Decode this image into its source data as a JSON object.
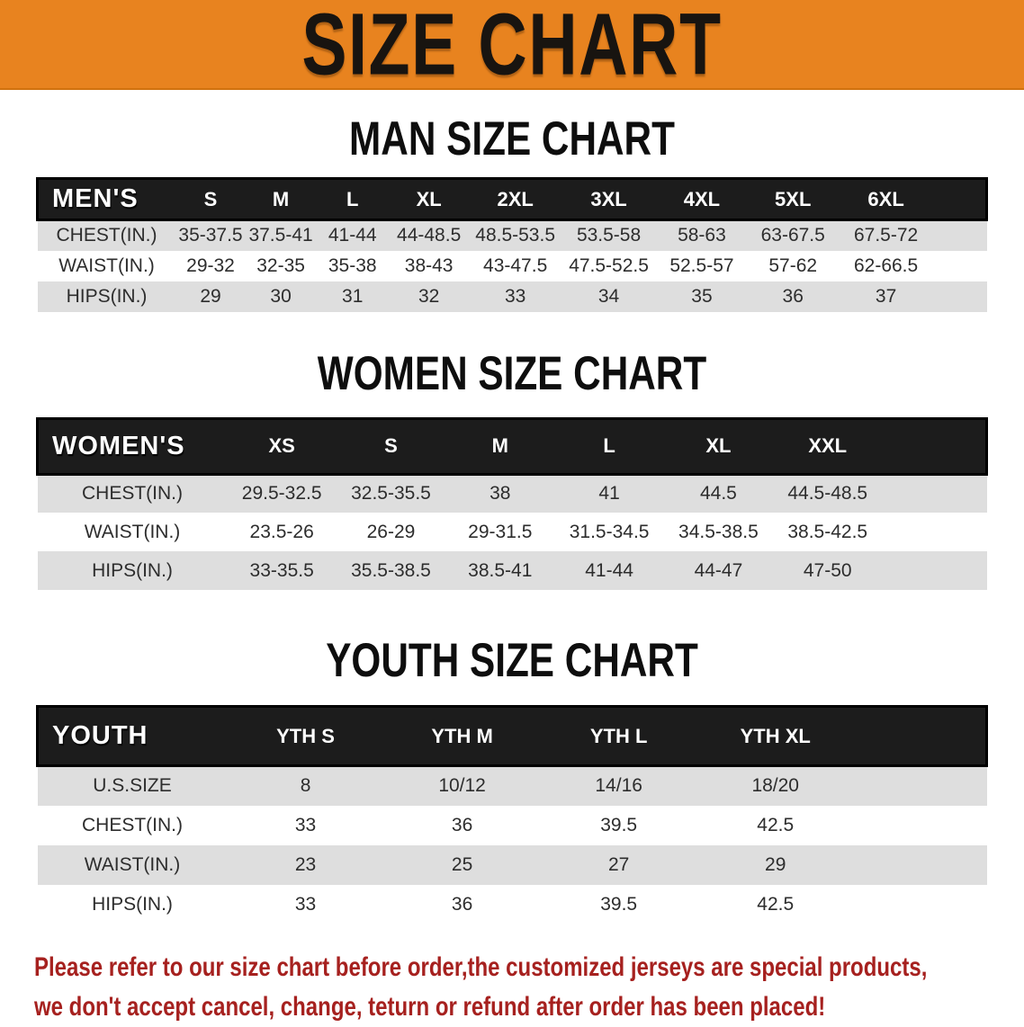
{
  "banner": {
    "title": "SIZE CHART"
  },
  "colors": {
    "banner_bg": "#E8831F",
    "header_bar": "#1C1C1C",
    "stripe": "#DEDEDE",
    "note_red": "#A6211F"
  },
  "sections": [
    {
      "title": "MAN SIZE CHART",
      "corner_label": "MEN'S",
      "columns": [
        "S",
        "M",
        "L",
        "XL",
        "2XL",
        "3XL",
        "4XL",
        "5XL",
        "6XL"
      ],
      "rows": [
        {
          "label": "CHEST(IN.)",
          "values": [
            "35-37.5",
            "37.5-41",
            "41-44",
            "44-48.5",
            "48.5-53.5",
            "53.5-58",
            "58-63",
            "63-67.5",
            "67.5-72"
          ]
        },
        {
          "label": "WAIST(IN.)",
          "values": [
            "29-32",
            "32-35",
            "35-38",
            "38-43",
            "43-47.5",
            "47.5-52.5",
            "52.5-57",
            "57-62",
            "62-66.5"
          ]
        },
        {
          "label": "HIPS(IN.)",
          "values": [
            "29",
            "30",
            "31",
            "32",
            "33",
            "34",
            "35",
            "36",
            "37"
          ]
        }
      ]
    },
    {
      "title": "WOMEN SIZE CHART",
      "corner_label": "WOMEN'S",
      "columns": [
        "XS",
        "S",
        "M",
        "L",
        "XL",
        "XXL"
      ],
      "rows": [
        {
          "label": "CHEST(IN.)",
          "values": [
            "29.5-32.5",
            "32.5-35.5",
            "38",
            "41",
            "44.5",
            "44.5-48.5"
          ]
        },
        {
          "label": "WAIST(IN.)",
          "values": [
            "23.5-26",
            "26-29",
            "29-31.5",
            "31.5-34.5",
            "34.5-38.5",
            "38.5-42.5"
          ]
        },
        {
          "label": "HIPS(IN.)",
          "values": [
            "33-35.5",
            "35.5-38.5",
            "38.5-41",
            "41-44",
            "44-47",
            "47-50"
          ]
        }
      ]
    },
    {
      "title": "YOUTH SIZE CHART",
      "corner_label": "YOUTH",
      "columns": [
        "YTH S",
        "YTH M",
        "YTH L",
        "YTH XL"
      ],
      "rows": [
        {
          "label": "U.S.SIZE",
          "values": [
            "8",
            "10/12",
            "14/16",
            "18/20"
          ]
        },
        {
          "label": "CHEST(IN.)",
          "values": [
            "33",
            "36",
            "39.5",
            "42.5"
          ]
        },
        {
          "label": "WAIST(IN.)",
          "values": [
            "23",
            "25",
            "27",
            "29"
          ]
        },
        {
          "label": "HIPS(IN.)",
          "values": [
            "33",
            "36",
            "39.5",
            "42.5"
          ]
        }
      ]
    }
  ],
  "footer": {
    "line1": "Please refer to our size chart before order,the customized jerseys are special products,",
    "line2": "we don't accept cancel, change, teturn or refund after order has been placed!"
  }
}
